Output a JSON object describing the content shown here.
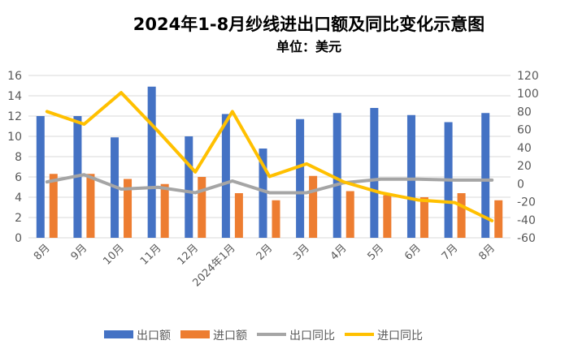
{
  "chart_data": {
    "type": "bar",
    "title": "2024年1-8月纱线进出口额及同比变化示意图",
    "subtitle": "单位：美元",
    "categories": [
      "8月",
      "9月",
      "10月",
      "11月",
      "12月",
      "2024年1月",
      "2月",
      "3月",
      "4月",
      "5月",
      "6月",
      "7月",
      "8月"
    ],
    "series": [
      {
        "name": "出口额",
        "type": "bar",
        "axis": "left",
        "color": "#4472C4",
        "values": [
          12.0,
          12.0,
          9.9,
          14.9,
          10.0,
          12.2,
          8.8,
          11.7,
          12.3,
          12.8,
          12.1,
          11.4,
          12.3
        ]
      },
      {
        "name": "进口额",
        "type": "bar",
        "axis": "left",
        "color": "#ED7D31",
        "values": [
          6.3,
          6.3,
          5.8,
          5.3,
          6.0,
          4.4,
          3.7,
          6.1,
          4.6,
          4.2,
          4.0,
          4.4,
          3.7
        ]
      },
      {
        "name": "出口同比",
        "type": "line",
        "axis": "right",
        "color": "#A5A5A5",
        "values": [
          2,
          10,
          -6,
          -4,
          -10,
          3,
          -10,
          -10,
          1,
          5,
          5,
          4,
          4
        ]
      },
      {
        "name": "进口同比",
        "type": "line",
        "axis": "right",
        "color": "#FFC000",
        "values": [
          80,
          66,
          101,
          58,
          13,
          80,
          8,
          22,
          2,
          -10,
          -18,
          -21,
          -41
        ]
      }
    ],
    "left_axis": {
      "ylim": [
        0,
        16
      ],
      "ticks": [
        0,
        2,
        4,
        6,
        8,
        10,
        12,
        14,
        16
      ]
    },
    "right_axis": {
      "ylim": [
        -60,
        120
      ],
      "ticks": [
        -60,
        -40,
        -20,
        0,
        20,
        40,
        60,
        80,
        100,
        120
      ]
    },
    "grid": true,
    "legend": "bottom"
  }
}
